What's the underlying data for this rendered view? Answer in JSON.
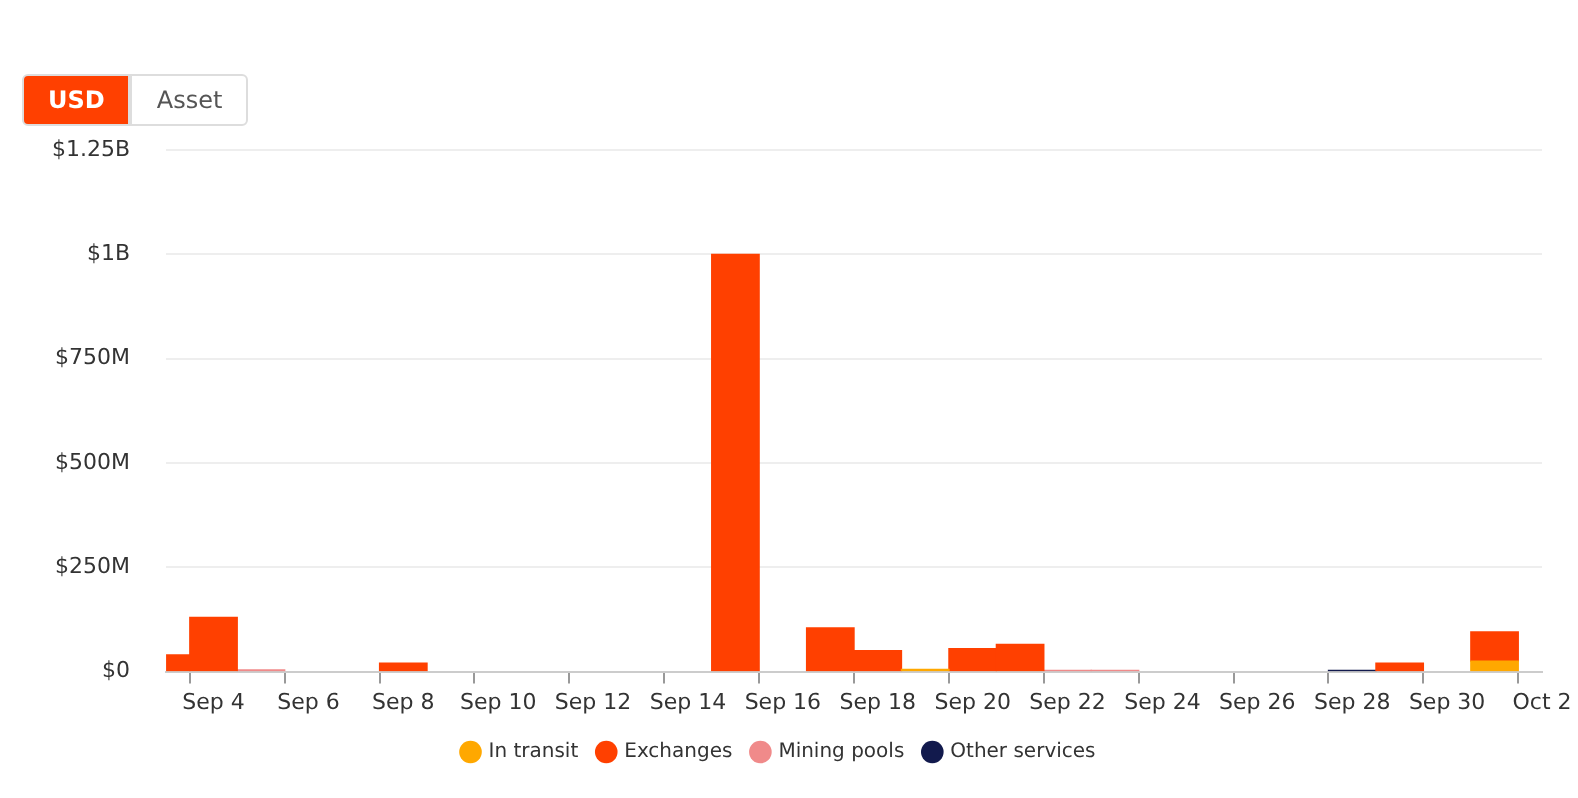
{
  "chart_data": {
    "type": "bar",
    "stacked": true,
    "annotations": [
      "USD",
      "Asset"
    ],
    "categories": [
      null,
      "Sep 4",
      null,
      "Sep 6",
      null,
      "Sep 8",
      null,
      "Sep 10",
      null,
      "Sep 12",
      null,
      "Sep 14",
      null,
      "Sep 16",
      null,
      "Sep 18",
      null,
      "Sep 20",
      null,
      "Sep 22",
      null,
      "Sep 24",
      null,
      "Sep 26",
      null,
      "Sep 28",
      null,
      "Sep 30",
      null,
      "Oct 2"
    ],
    "series": [
      {
        "name": "In transit",
        "color": "#ffa800",
        "values": [
          null,
          null,
          null,
          null,
          null,
          null,
          null,
          null,
          null,
          null,
          null,
          null,
          null,
          null,
          null,
          null,
          5000000,
          null,
          null,
          null,
          null,
          null,
          null,
          null,
          null,
          null,
          null,
          null,
          25000000,
          null
        ]
      },
      {
        "name": "Exchanges",
        "color": "#ff4000",
        "values": [
          40000000,
          130000000,
          null,
          null,
          null,
          20000000,
          null,
          null,
          null,
          null,
          null,
          null,
          1000000000,
          null,
          105000000,
          50000000,
          null,
          55000000,
          65000000,
          null,
          null,
          null,
          null,
          null,
          null,
          null,
          20000000,
          null,
          70000000,
          null
        ]
      },
      {
        "name": "Mining pools",
        "color": "#f08a8a",
        "values": [
          null,
          null,
          4000000,
          null,
          null,
          null,
          null,
          null,
          null,
          null,
          null,
          null,
          null,
          null,
          null,
          null,
          null,
          null,
          null,
          3000000,
          3000000,
          null,
          null,
          null,
          null,
          null,
          null,
          null,
          null,
          null
        ]
      },
      {
        "name": "Other services",
        "color": "#121a4d",
        "values": [
          null,
          null,
          null,
          null,
          null,
          null,
          null,
          null,
          null,
          null,
          null,
          null,
          null,
          null,
          null,
          null,
          null,
          null,
          null,
          null,
          null,
          null,
          null,
          null,
          null,
          3000000,
          null,
          null,
          null,
          null
        ]
      }
    ],
    "ylim": [
      0,
      1250000000
    ],
    "yticks": [
      {
        "value": 0,
        "label": "$0"
      },
      {
        "value": 250000000,
        "label": "$250M"
      },
      {
        "value": 500000000,
        "label": "$500M"
      },
      {
        "value": 750000000,
        "label": "$750M"
      },
      {
        "value": 1000000000,
        "label": "$1B"
      },
      {
        "value": 1250000000,
        "label": "$1.25B"
      }
    ],
    "grid": "y",
    "legend": "bottom"
  }
}
